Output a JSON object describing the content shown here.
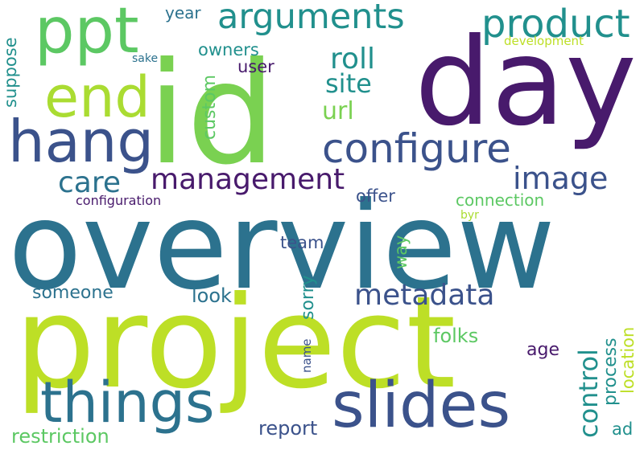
{
  "palette": {
    "dark_purple": "#481a6c",
    "indigo": "#3b528b",
    "steel_blue": "#2c728e",
    "teal": "#21908d",
    "green": "#27ad81",
    "light_green": "#5cc863",
    "lime": "#aadc32",
    "yellow_green": "#bddf26"
  },
  "words": {
    "id": "id",
    "day": "day",
    "overview": "overview",
    "project": "project",
    "ppt": "ppt",
    "end": "end",
    "hang": "hang",
    "arguments": "arguments",
    "product": "product",
    "configure": "configure",
    "things": "things",
    "slides": "slides",
    "management": "management",
    "care": "care",
    "image": "image",
    "metadata": "metadata",
    "roll": "roll",
    "site": "site",
    "url": "url",
    "year": "year",
    "owners": "owners",
    "user": "user",
    "custom": "custom",
    "suppose": "suppose",
    "sake": "sake",
    "development": "development",
    "offer": "offer",
    "connection": "connection",
    "configuration": "configuration",
    "byr": "byr",
    "team": "team",
    "way": "way",
    "sorry": "sorry",
    "someone": "someone",
    "look": "look",
    "control": "control",
    "process": "process",
    "location": "location",
    "folks": "folks",
    "age": "age",
    "name": "name",
    "report": "report",
    "restriction": "restriction",
    "ad": "ad"
  }
}
